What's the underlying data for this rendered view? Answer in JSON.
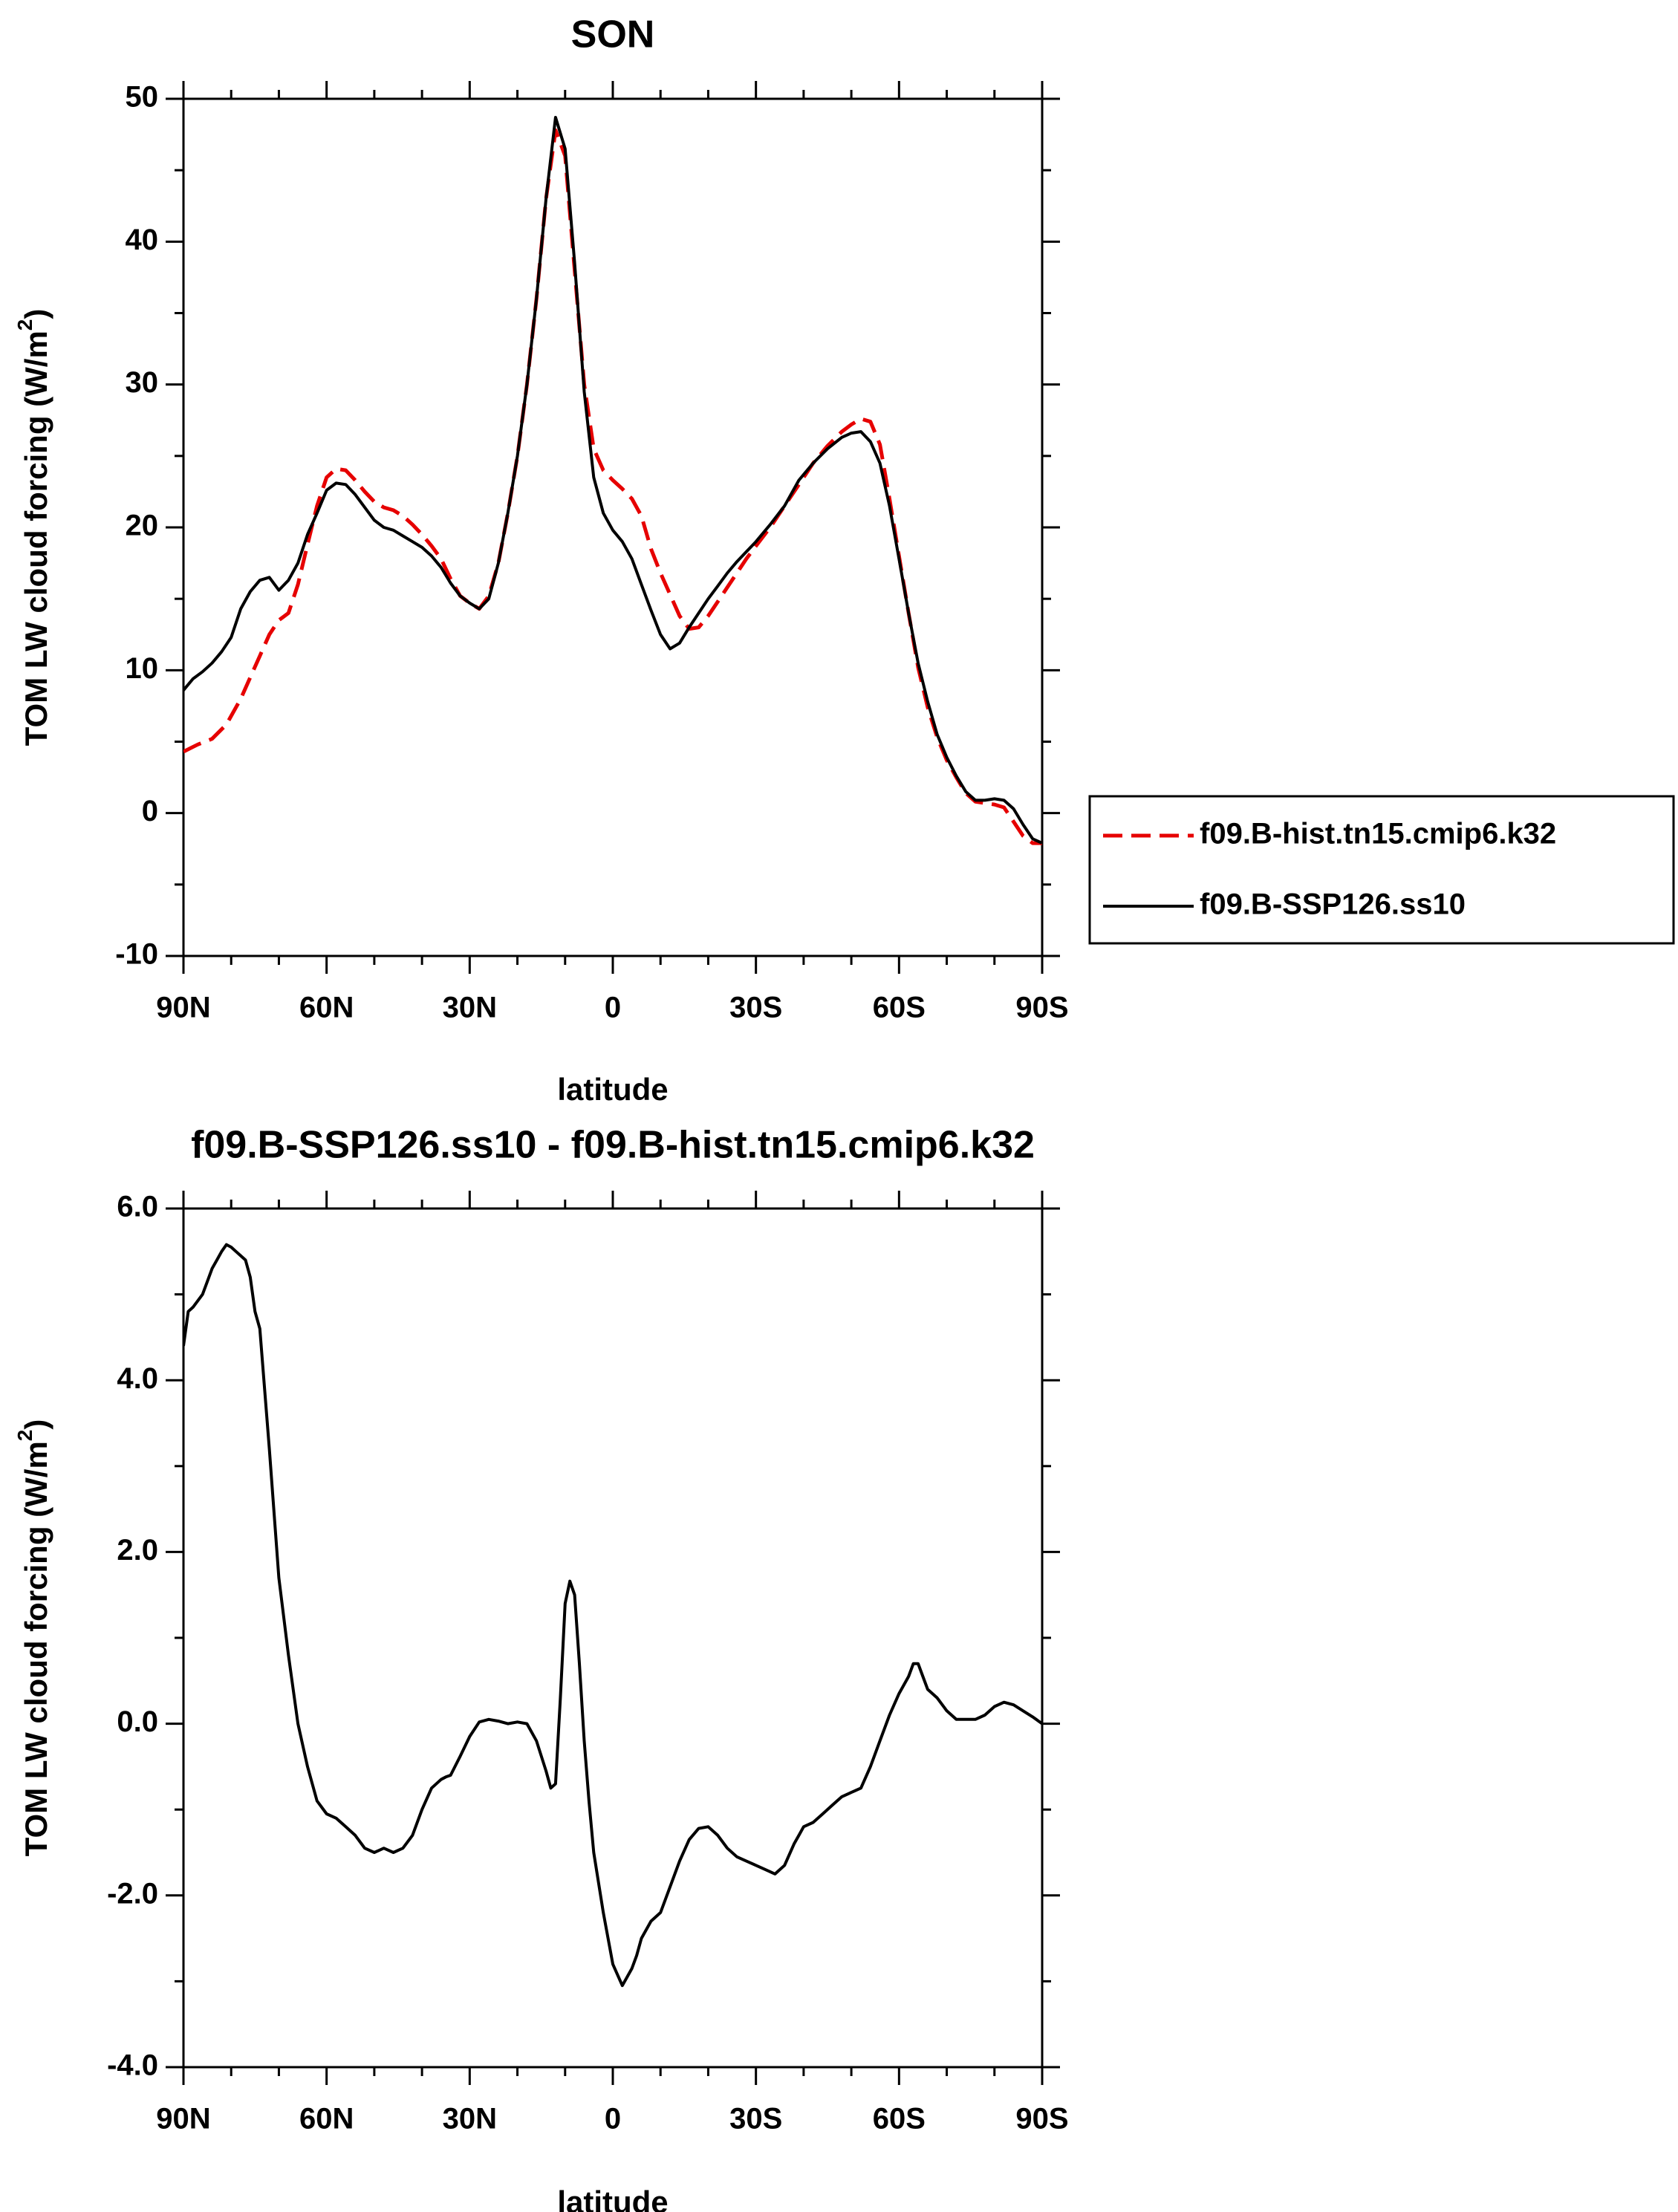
{
  "chart_data": [
    {
      "type": "line",
      "title": "SON",
      "xlabel": "latitude",
      "ylabel": "TOM LW cloud forcing (W/m",
      "ylabel_sup": "2",
      "ylabel_tail": ")",
      "xlim": [
        90,
        -90
      ],
      "ylim": [
        -10,
        50
      ],
      "xticks": [
        90,
        60,
        30,
        0,
        -30,
        -60,
        -90
      ],
      "xtick_labels": [
        "90N",
        "60N",
        "30N",
        "0",
        "30S",
        "60S",
        "90S"
      ],
      "yticks": [
        -10,
        0,
        10,
        20,
        30,
        40,
        50
      ],
      "ytick_labels": [
        "-10",
        "0",
        "10",
        "20",
        "30",
        "40",
        "50"
      ],
      "grid": false,
      "legend": "right",
      "series": [
        {
          "name": "f09.B-hist.tn15.cmip6.k32",
          "color": "#e60000",
          "dash": "dashed",
          "x": [
            90,
            87,
            84,
            81,
            78,
            76,
            74,
            72,
            70,
            68,
            66,
            64,
            62,
            60,
            58,
            56,
            54,
            52,
            50,
            48,
            46,
            44,
            42,
            40,
            38,
            36,
            34,
            32,
            30,
            28,
            26,
            24,
            22,
            20,
            18,
            16,
            14,
            12,
            10,
            8,
            6,
            4,
            2,
            0,
            -2,
            -4,
            -6,
            -8,
            -10,
            -12,
            -14,
            -16,
            -18,
            -20,
            -22,
            -24,
            -26,
            -28,
            -30,
            -33,
            -36,
            -39,
            -42,
            -45,
            -48,
            -50,
            -52,
            -54,
            -56,
            -58,
            -60,
            -62,
            -64,
            -66,
            -68,
            -70,
            -72,
            -74,
            -76,
            -78,
            -80,
            -82,
            -84,
            -86,
            -88,
            -90
          ],
          "y": [
            4.3,
            4.8,
            5.2,
            6.2,
            8.0,
            9.5,
            11.0,
            12.5,
            13.5,
            14.0,
            16.0,
            18.8,
            21.5,
            23.5,
            24.1,
            24.0,
            23.3,
            22.5,
            21.8,
            21.4,
            21.2,
            20.8,
            20.2,
            19.5,
            18.7,
            17.8,
            16.4,
            15.2,
            14.7,
            14.3,
            15.2,
            17.5,
            21.0,
            25.0,
            30.0,
            36.0,
            43.0,
            47.8,
            46.0,
            38.0,
            30.0,
            25.5,
            24.0,
            23.3,
            22.7,
            22.0,
            20.8,
            18.5,
            16.8,
            15.3,
            13.8,
            12.9,
            13.0,
            13.8,
            14.8,
            15.8,
            16.8,
            17.8,
            18.7,
            20.0,
            21.5,
            23.0,
            24.5,
            25.7,
            26.7,
            27.2,
            27.6,
            27.4,
            25.8,
            22.0,
            18.0,
            14.0,
            10.2,
            7.4,
            5.3,
            3.7,
            2.5,
            1.4,
            0.8,
            0.7,
            0.6,
            0.4,
            -0.6,
            -1.6,
            -2.1,
            -2.1
          ]
        },
        {
          "name": "f09.B-SSP126.ss10",
          "color": "#000000",
          "dash": "solid",
          "x": [
            90,
            88,
            86,
            84,
            82,
            80,
            78,
            76,
            74,
            72,
            70,
            68,
            66,
            64,
            62,
            60,
            58,
            56,
            54,
            52,
            50,
            48,
            46,
            44,
            42,
            40,
            38,
            36,
            34,
            32,
            30,
            28,
            26,
            24,
            22,
            20,
            18,
            16,
            14,
            12,
            10,
            8,
            6,
            4,
            2,
            0,
            -2,
            -4,
            -6,
            -8,
            -10,
            -12,
            -14,
            -16,
            -18,
            -20,
            -22,
            -24,
            -26,
            -28,
            -30,
            -33,
            -36,
            -39,
            -42,
            -45,
            -48,
            -50,
            -52,
            -54,
            -56,
            -58,
            -60,
            -62,
            -64,
            -66,
            -68,
            -70,
            -72,
            -74,
            -76,
            -78,
            -80,
            -82,
            -84,
            -86,
            -88,
            -90
          ],
          "y": [
            8.6,
            9.4,
            9.9,
            10.5,
            11.3,
            12.3,
            14.3,
            15.5,
            16.3,
            16.5,
            15.6,
            16.3,
            17.5,
            19.5,
            21.0,
            22.6,
            23.1,
            23.0,
            22.3,
            21.4,
            20.5,
            20.0,
            19.8,
            19.4,
            19.0,
            18.6,
            18.0,
            17.2,
            16.1,
            15.2,
            14.7,
            14.3,
            15.0,
            17.5,
            21.0,
            25.0,
            30.0,
            36.0,
            43.0,
            48.7,
            46.5,
            38.5,
            29.5,
            23.5,
            21.0,
            19.8,
            19.0,
            17.8,
            16.0,
            14.2,
            12.5,
            11.5,
            11.9,
            13.0,
            14.0,
            15.0,
            15.9,
            16.8,
            17.6,
            18.3,
            19.0,
            20.2,
            21.5,
            23.3,
            24.5,
            25.5,
            26.3,
            26.6,
            26.7,
            26.0,
            24.5,
            21.5,
            17.8,
            14.0,
            10.5,
            7.8,
            5.5,
            3.9,
            2.6,
            1.5,
            0.9,
            0.9,
            1.0,
            0.9,
            0.3,
            -0.8,
            -1.8,
            -2.1
          ]
        }
      ]
    },
    {
      "type": "line",
      "title": "f09.B-SSP126.ss10 - f09.B-hist.tn15.cmip6.k32",
      "xlabel": "latitude",
      "ylabel": "TOM LW cloud forcing (W/m",
      "ylabel_sup": "2",
      "ylabel_tail": ")",
      "xlim": [
        90,
        -90
      ],
      "ylim": [
        -4,
        6
      ],
      "xticks": [
        90,
        60,
        30,
        0,
        -30,
        -60,
        -90
      ],
      "xtick_labels": [
        "90N",
        "60N",
        "30N",
        "0",
        "30S",
        "60S",
        "90S"
      ],
      "yticks": [
        -4,
        -2,
        0,
        2,
        4,
        6
      ],
      "ytick_labels": [
        "-4.0",
        "-2.0",
        "0.0",
        "2.0",
        "4.0",
        "6.0"
      ],
      "grid": false,
      "series": [
        {
          "color": "#000000",
          "dash": "solid",
          "x": [
            90,
            89,
            88,
            86,
            85,
            84,
            83,
            82,
            81,
            80,
            79,
            78,
            77,
            76,
            75,
            74,
            72,
            70,
            68,
            66,
            64,
            62,
            60,
            58,
            56,
            54,
            52,
            50,
            48,
            46,
            44,
            42,
            40,
            38,
            36,
            35,
            34,
            32,
            30,
            28,
            26,
            24,
            22,
            20,
            18,
            16,
            14,
            13,
            12,
            11,
            10,
            9,
            8,
            7,
            6,
            5,
            4,
            2,
            0,
            -2,
            -4,
            -5,
            -6,
            -8,
            -10,
            -12,
            -14,
            -16,
            -18,
            -20,
            -22,
            -24,
            -26,
            -28,
            -30,
            -32,
            -34,
            -36,
            -38,
            -39,
            -40,
            -42,
            -44,
            -46,
            -48,
            -50,
            -52,
            -54,
            -56,
            -58,
            -60,
            -62,
            -63,
            -64,
            -65,
            -66,
            -68,
            -70,
            -72,
            -74,
            -76,
            -78,
            -80,
            -82,
            -84,
            -86,
            -88,
            -90
          ],
          "y": [
            4.4,
            4.8,
            4.85,
            5.0,
            5.15,
            5.3,
            5.4,
            5.5,
            5.58,
            5.55,
            5.5,
            5.45,
            5.4,
            5.2,
            4.8,
            4.6,
            3.2,
            1.7,
            0.8,
            0.0,
            -0.5,
            -0.9,
            -1.05,
            -1.1,
            -1.2,
            -1.3,
            -1.45,
            -1.5,
            -1.45,
            -1.5,
            -1.45,
            -1.3,
            -1.0,
            -0.75,
            -0.65,
            -0.62,
            -0.6,
            -0.38,
            -0.15,
            0.02,
            0.05,
            0.03,
            0.0,
            0.02,
            0.0,
            -0.2,
            -0.55,
            -0.75,
            -0.7,
            0.3,
            1.4,
            1.66,
            1.5,
            0.7,
            -0.2,
            -0.9,
            -1.5,
            -2.2,
            -2.8,
            -3.05,
            -2.85,
            -2.7,
            -2.5,
            -2.3,
            -2.2,
            -1.9,
            -1.6,
            -1.35,
            -1.22,
            -1.2,
            -1.3,
            -1.45,
            -1.55,
            -1.6,
            -1.65,
            -1.7,
            -1.75,
            -1.65,
            -1.4,
            -1.3,
            -1.2,
            -1.15,
            -1.05,
            -0.95,
            -0.85,
            -0.8,
            -0.75,
            -0.5,
            -0.2,
            0.1,
            0.35,
            0.55,
            0.7,
            0.7,
            0.55,
            0.4,
            0.3,
            0.15,
            0.05,
            0.05,
            0.05,
            0.1,
            0.2,
            0.25,
            0.22,
            0.15,
            0.08,
            0.0
          ]
        }
      ]
    }
  ]
}
